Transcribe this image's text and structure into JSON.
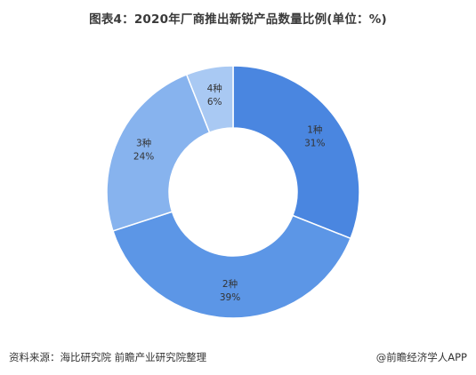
{
  "title": "图表4：2020年厂商推出新锐产品数量比例(单位：%)",
  "footer": {
    "source": "资料来源：海比研究院 前瞻产业研究院整理",
    "brand": "@前瞻经济学人APP"
  },
  "chart_data": {
    "type": "pie",
    "donut": true,
    "categories": [
      "1种",
      "2种",
      "3种",
      "4种"
    ],
    "values": [
      31,
      39,
      24,
      6
    ],
    "value_labels": [
      "31%",
      "39%",
      "24%",
      "6%"
    ],
    "colors": [
      "#4a86e0",
      "#5c96e6",
      "#87b3ee",
      "#a9c9f3"
    ],
    "stroke": "#ffffff",
    "start": "12 o'clock",
    "direction": "clockwise"
  }
}
